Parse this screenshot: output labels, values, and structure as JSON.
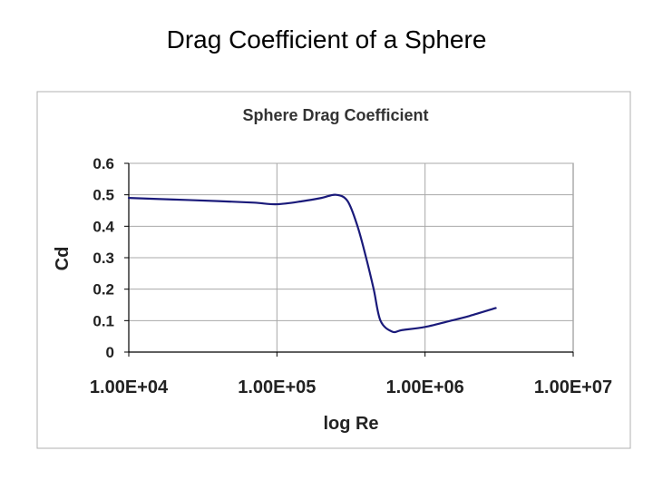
{
  "slide": {
    "title": "Drag Coefficient of a Sphere"
  },
  "chart_data": {
    "type": "line",
    "title": "Sphere Drag Coefficient",
    "xlabel": "log Re",
    "ylabel": "Cd",
    "x_scale": "log",
    "xlim": [
      10000,
      10000000
    ],
    "ylim": [
      0,
      0.6
    ],
    "yticks": [
      "0",
      "0.1",
      "0.2",
      "0.3",
      "0.4",
      "0.5",
      "0.6"
    ],
    "xticks": [
      "1.00E+04",
      "1.00E+05",
      "1.00E+06",
      "1.00E+07"
    ],
    "grid": true,
    "legend": "none",
    "line_color": "#1a1a7a",
    "series": [
      {
        "x": [
          10000,
          20000,
          40000,
          70000,
          100000,
          150000,
          200000,
          250000,
          300000,
          350000,
          400000,
          450000,
          500000,
          600000,
          700000,
          1000000,
          1500000,
          2000000,
          3000000
        ],
        "y": [
          0.49,
          0.485,
          0.48,
          0.475,
          0.47,
          0.48,
          0.49,
          0.5,
          0.48,
          0.4,
          0.3,
          0.2,
          0.1,
          0.065,
          0.07,
          0.08,
          0.1,
          0.115,
          0.14
        ]
      }
    ]
  }
}
